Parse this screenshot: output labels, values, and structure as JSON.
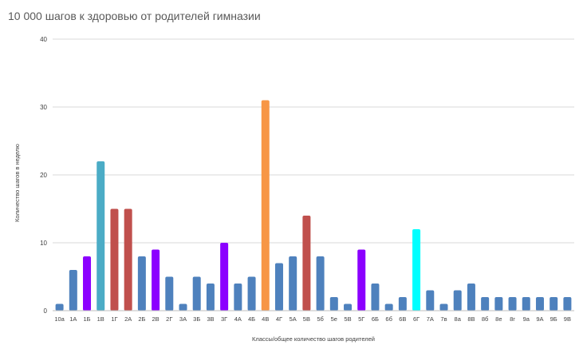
{
  "chart_data": {
    "type": "bar",
    "title": "10 000 шагов к здоровью от родителей гимназии",
    "xlabel": "Классы/общее количество шагов родителей",
    "ylabel": "Количество шагов в неделю",
    "ylim": [
      0,
      40
    ],
    "yticks": [
      0,
      10,
      20,
      30,
      40
    ],
    "grid": true,
    "categories": [
      "10а",
      "1А",
      "1Б",
      "1В",
      "1Г",
      "2А",
      "2Б",
      "2В",
      "2Г",
      "3А",
      "3Б",
      "3В",
      "3Г",
      "4А",
      "4Б",
      "4В",
      "4Г",
      "5А",
      "5В",
      "5б",
      "5е",
      "5В",
      "5Г",
      "6Б",
      "6б",
      "6В",
      "6Г",
      "7А",
      "7в",
      "8а",
      "8В",
      "8б",
      "8е",
      "8г",
      "9а",
      "9А",
      "9Б",
      "9В"
    ],
    "values": [
      1,
      6,
      8,
      22,
      15,
      15,
      8,
      9,
      5,
      1,
      5,
      4,
      10,
      4,
      5,
      31,
      7,
      8,
      14,
      8,
      2,
      1,
      9,
      4,
      1,
      2,
      12,
      3,
      1,
      3,
      4,
      2,
      2,
      2,
      2,
      2,
      2,
      2
    ],
    "colors": [
      "#4e81bd",
      "#4e81bd",
      "#8b00ff",
      "#4bacc6",
      "#c0504d",
      "#c0504d",
      "#4e81bd",
      "#8b00ff",
      "#4e81bd",
      "#4e81bd",
      "#4e81bd",
      "#4e81bd",
      "#8b00ff",
      "#4e81bd",
      "#4e81bd",
      "#f79646",
      "#4e81bd",
      "#4e81bd",
      "#c0504d",
      "#4e81bd",
      "#4e81bd",
      "#4e81bd",
      "#8b00ff",
      "#4e81bd",
      "#4e81bd",
      "#4e81bd",
      "#00ffff",
      "#4e81bd",
      "#4e81bd",
      "#4e81bd",
      "#4e81bd",
      "#4e81bd",
      "#4e81bd",
      "#4e81bd",
      "#4e81bd",
      "#4e81bd",
      "#4e81bd",
      "#4e81bd"
    ],
    "gridline_color": "#d9d9d9",
    "axis_color": "#bfbfbf"
  }
}
